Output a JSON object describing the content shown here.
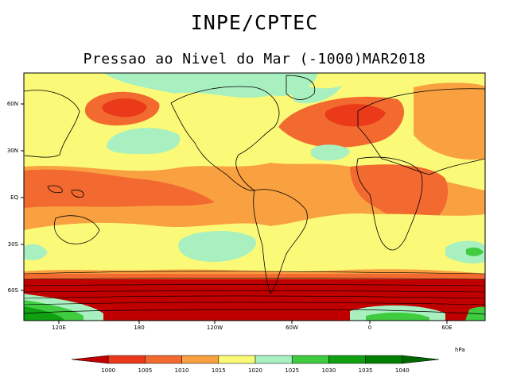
{
  "header": {
    "title": "INPE/CPTEC",
    "subtitle": "Pressao ao Nivel do Mar (-1000)MAR2018"
  },
  "map": {
    "lat_labels": [
      "60N",
      "30N",
      "EQ",
      "30S",
      "60S"
    ],
    "lon_labels": [
      "120E",
      "180",
      "120W",
      "60W",
      "0",
      "60E"
    ]
  },
  "colorbar": {
    "unit": "hPa",
    "levels": [
      "1000",
      "1005",
      "1010",
      "1015",
      "1020",
      "1025",
      "1030",
      "1035",
      "1040"
    ],
    "colors": [
      "#c00000",
      "#ea3a1a",
      "#f26a30",
      "#f9a040",
      "#fafa78",
      "#a8f0c0",
      "#40cc40",
      "#10a010",
      "#008000",
      "#006600"
    ]
  }
}
